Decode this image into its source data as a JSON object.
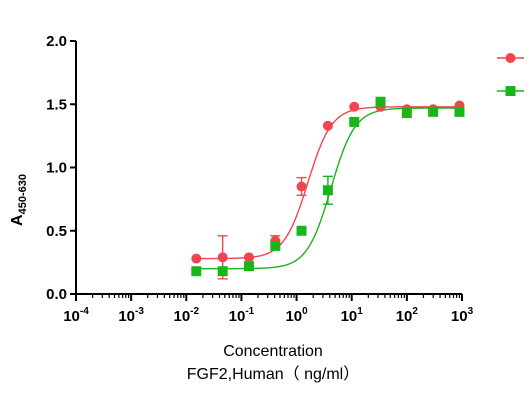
{
  "chart_data": {
    "type": "scatter",
    "xscale": "log",
    "xlim": [
      0.0001,
      1000
    ],
    "ylim": [
      0,
      2.0
    ],
    "y_ticks": [
      0.0,
      0.5,
      1.0,
      1.5,
      2.0
    ],
    "y_tick_labels": [
      "0.0",
      "0.5",
      "1.0",
      "1.5",
      "2.0"
    ],
    "x_ticks": [
      {
        "value": 0.0001,
        "base": "10",
        "exp": "-4"
      },
      {
        "value": 0.001,
        "base": "10",
        "exp": "-3"
      },
      {
        "value": 0.01,
        "base": "10",
        "exp": "-2"
      },
      {
        "value": 0.1,
        "base": "10",
        "exp": "-1"
      },
      {
        "value": 1,
        "base": "10",
        "exp": "0"
      },
      {
        "value": 10,
        "base": "10",
        "exp": "1"
      },
      {
        "value": 100,
        "base": "10",
        "exp": "2"
      },
      {
        "value": 1000,
        "base": "10",
        "exp": "3"
      }
    ],
    "ylabel_main": "A",
    "ylabel_sub": "450-630",
    "xlabel_line1": "Concentration",
    "xlabel_line2": "FGF2,Human（ ng/ml）",
    "grid": false,
    "legend_position": "top-right",
    "series": [
      {
        "marker": "circle",
        "color": "#f0474f",
        "points": [
          {
            "x": 0.0152,
            "y": 0.28,
            "err": 0
          },
          {
            "x": 0.0457,
            "y": 0.29,
            "err": 0.17
          },
          {
            "x": 0.137,
            "y": 0.29,
            "err": 0
          },
          {
            "x": 0.412,
            "y": 0.42,
            "err": 0.04
          },
          {
            "x": 1.23,
            "y": 0.85,
            "err": 0.07
          },
          {
            "x": 3.7,
            "y": 1.33,
            "err": 0
          },
          {
            "x": 11.1,
            "y": 1.48,
            "err": 0
          },
          {
            "x": 33.3,
            "y": 1.48,
            "err": 0
          },
          {
            "x": 100,
            "y": 1.46,
            "err": 0
          },
          {
            "x": 300,
            "y": 1.46,
            "err": 0
          },
          {
            "x": 900,
            "y": 1.49,
            "err": 0
          }
        ],
        "fit": {
          "bottom": 0.28,
          "top": 1.48,
          "ec50": 1.6,
          "hill": 2.0
        }
      },
      {
        "marker": "square",
        "color": "#1ab51a",
        "points": [
          {
            "x": 0.0152,
            "y": 0.18,
            "err": 0
          },
          {
            "x": 0.0457,
            "y": 0.18,
            "err": 0
          },
          {
            "x": 0.137,
            "y": 0.22,
            "err": 0
          },
          {
            "x": 0.412,
            "y": 0.38,
            "err": 0
          },
          {
            "x": 1.23,
            "y": 0.5,
            "err": 0
          },
          {
            "x": 3.7,
            "y": 0.82,
            "err": 0.11
          },
          {
            "x": 11.1,
            "y": 1.36,
            "err": 0
          },
          {
            "x": 33.3,
            "y": 1.52,
            "err": 0
          },
          {
            "x": 100,
            "y": 1.43,
            "err": 0
          },
          {
            "x": 300,
            "y": 1.44,
            "err": 0
          },
          {
            "x": 900,
            "y": 1.44,
            "err": 0
          }
        ],
        "fit": {
          "bottom": 0.2,
          "top": 1.47,
          "ec50": 4.2,
          "hill": 2.0
        }
      }
    ]
  }
}
